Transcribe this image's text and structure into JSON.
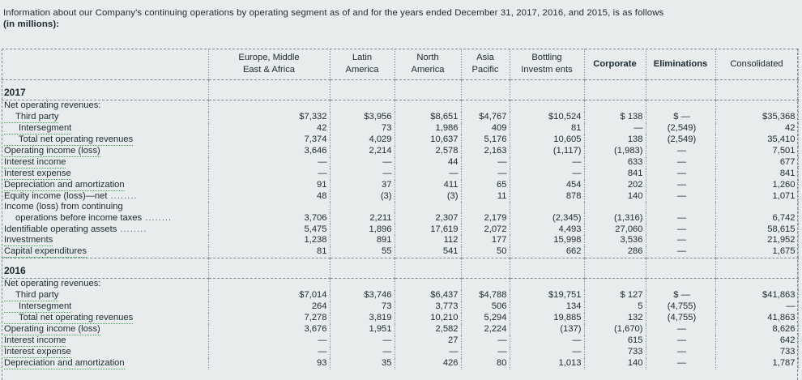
{
  "intro": {
    "line1": "Information about our Company's continuing operations by operating segment as of and for the years ended December 31, 2017, 2016, and 2015, is as follows",
    "line2": "(in millions):"
  },
  "columns": [
    "Europe, Middle East & Africa",
    "Latin America",
    "North America",
    "Asia Pacific",
    "Bottling Investm ents",
    "Corporate",
    "Eliminations",
    "Consolidated"
  ],
  "col_lines": [
    [
      "Europe, Middle",
      "East & Africa"
    ],
    [
      "Latin",
      "America"
    ],
    [
      "North",
      "America"
    ],
    [
      "Asia",
      "Pacific"
    ],
    [
      "Bottling",
      "Investm ents"
    ],
    [
      "Corporate"
    ],
    [
      "Eliminations"
    ],
    [
      "Consolidated"
    ]
  ],
  "y2017": {
    "year": "2017",
    "nor_label": "Net operating revenues:",
    "rows": [
      {
        "label": "Third party",
        "vals": [
          "$7,332",
          "$3,956",
          "$8,651",
          "$4,767",
          "$10,524",
          "$ 138",
          "$ —",
          "$35,368"
        ]
      },
      {
        "label": "Intersegment",
        "vals": [
          "42",
          "73",
          "1,986",
          "409",
          "81",
          "—",
          "(2,549)",
          "42"
        ]
      },
      {
        "label": "Total net operating revenues",
        "vals": [
          "7,374",
          "4,029",
          "10,637",
          "5,176",
          "10,605",
          "138",
          "(2,549)",
          "35,410"
        ]
      },
      {
        "label": "Operating income (loss)",
        "vals": [
          "3,646",
          "2,214",
          "2,578",
          "2,163",
          "(1,117)",
          "(1,983)",
          "—",
          "7,501"
        ]
      },
      {
        "label": "Interest income",
        "vals": [
          "—",
          "—",
          "44",
          "—",
          "—",
          "633",
          "—",
          "677"
        ]
      },
      {
        "label": "Interest expense",
        "vals": [
          "—",
          "—",
          "—",
          "—",
          "—",
          "841",
          "—",
          "841"
        ]
      },
      {
        "label": "Depreciation and amortization",
        "vals": [
          "91",
          "37",
          "411",
          "65",
          "454",
          "202",
          "—",
          "1,260"
        ]
      },
      {
        "label": "Equity income (loss)—net",
        "vals": [
          "48",
          "(3)",
          "(3)",
          "11",
          "878",
          "140",
          "—",
          "1,071"
        ]
      }
    ],
    "inc_label1": "Income (loss) from continuing",
    "inc_label2": "operations before income taxes",
    "inc_vals": [
      "3,706",
      "2,211",
      "2,307",
      "2,179",
      "(2,345)",
      "(1,316)",
      "—",
      "6,742"
    ],
    "rows2": [
      {
        "label": "Identifiable operating assets",
        "vals": [
          "5,475",
          "1,896",
          "17,619",
          "2,072",
          "4,493",
          "27,060",
          "—",
          "58,615"
        ]
      },
      {
        "label": "Investments",
        "vals": [
          "1,238",
          "891",
          "112",
          "177",
          "15,998",
          "3,536",
          "—",
          "21,952"
        ]
      },
      {
        "label": "Capital expenditures",
        "vals": [
          "81",
          "55",
          "541",
          "50",
          "662",
          "286",
          "—",
          "1,675"
        ]
      }
    ]
  },
  "y2016": {
    "year": "2016",
    "nor_label": "Net operating revenues:",
    "rows": [
      {
        "label": "Third party",
        "vals": [
          "$7,014",
          "$3,746",
          "$6,437",
          "$4,788",
          "$19,751",
          "$ 127",
          "$ —",
          "$41,863"
        ]
      },
      {
        "label": "Intersegment",
        "vals": [
          "264",
          "73",
          "3,773",
          "506",
          "134",
          "5",
          "(4,755)",
          "—"
        ]
      },
      {
        "label": "Total net operating revenues",
        "vals": [
          "7,278",
          "3,819",
          "10,210",
          "5,294",
          "19,885",
          "132",
          "(4,755)",
          "41,863"
        ]
      },
      {
        "label": "Operating income (loss)",
        "vals": [
          "3,676",
          "1,951",
          "2,582",
          "2,224",
          "(137)",
          "(1,670)",
          "—",
          "8,626"
        ]
      },
      {
        "label": "Interest income",
        "vals": [
          "—",
          "—",
          "27",
          "—",
          "—",
          "615",
          "—",
          "642"
        ]
      },
      {
        "label": "Interest expense",
        "vals": [
          "—",
          "—",
          "—",
          "—",
          "—",
          "733",
          "—",
          "733"
        ]
      },
      {
        "label": "Depreciation and amortization",
        "vals": [
          "93",
          "35",
          "426",
          "80",
          "1,013",
          "140",
          "—",
          "1,787"
        ]
      }
    ]
  }
}
